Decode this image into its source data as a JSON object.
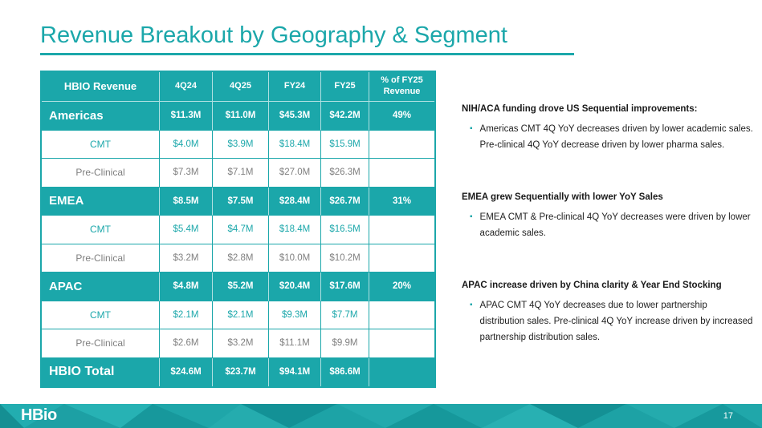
{
  "slide": {
    "title": "Revenue Breakout by Geography & Segment",
    "page_number": "17",
    "logo_text": "HBio"
  },
  "colors": {
    "teal": "#1ba7aa",
    "gray": "#7f7f7f"
  },
  "icons": {
    "bullet": "▪"
  },
  "table": {
    "headers": [
      "HBIO Revenue",
      "4Q24",
      "4Q25",
      "FY24",
      "FY25",
      "% of FY25 Revenue"
    ],
    "rows": [
      {
        "label": "Americas",
        "type": "section",
        "values": [
          "$11.3M",
          "$11.0M",
          "$45.3M",
          "$42.2M",
          "49%"
        ]
      },
      {
        "label": "CMT",
        "type": "cmt",
        "values": [
          "$4.0M",
          "$3.9M",
          "$18.4M",
          "$15.9M",
          ""
        ]
      },
      {
        "label": "Pre-Clinical",
        "type": "preclinical",
        "values": [
          "$7.3M",
          "$7.1M",
          "$27.0M",
          "$26.3M",
          ""
        ]
      },
      {
        "label": "EMEA",
        "type": "section",
        "values": [
          "$8.5M",
          "$7.5M",
          "$28.4M",
          "$26.7M",
          "31%"
        ]
      },
      {
        "label": "CMT",
        "type": "cmt",
        "values": [
          "$5.4M",
          "$4.7M",
          "$18.4M",
          "$16.5M",
          ""
        ]
      },
      {
        "label": "Pre-Clinical",
        "type": "preclinical",
        "values": [
          "$3.2M",
          "$2.8M",
          "$10.0M",
          "$10.2M",
          ""
        ]
      },
      {
        "label": "APAC",
        "type": "section",
        "values": [
          "$4.8M",
          "$5.2M",
          "$20.4M",
          "$17.6M",
          "20%"
        ]
      },
      {
        "label": "CMT",
        "type": "cmt",
        "values": [
          "$2.1M",
          "$2.1M",
          "$9.3M",
          "$7.7M",
          ""
        ]
      },
      {
        "label": "Pre-Clinical",
        "type": "preclinical",
        "values": [
          "$2.6M",
          "$3.2M",
          "$11.1M",
          "$9.9M",
          ""
        ]
      },
      {
        "label": "HBIO Total",
        "type": "total",
        "values": [
          "$24.6M",
          "$23.7M",
          "$94.1M",
          "$86.6M",
          ""
        ]
      }
    ]
  },
  "notes": [
    {
      "heading": "NIH/ACA funding drove US Sequential improvements:",
      "bullets": [
        "Americas CMT 4Q YoY decreases driven by lower academic sales. Pre-clinical 4Q YoY decrease driven by lower pharma sales."
      ]
    },
    {
      "heading": "EMEA grew Sequentially with lower YoY Sales",
      "bullets": [
        "EMEA CMT & Pre-clinical 4Q YoY decreases were driven by lower academic sales."
      ]
    },
    {
      "heading": "APAC increase driven by China clarity & Year End Stocking",
      "bullets": [
        "APAC CMT 4Q YoY decreases due to lower partnership distribution sales. Pre-clinical 4Q YoY increase driven by increased partnership distribution sales."
      ]
    }
  ]
}
